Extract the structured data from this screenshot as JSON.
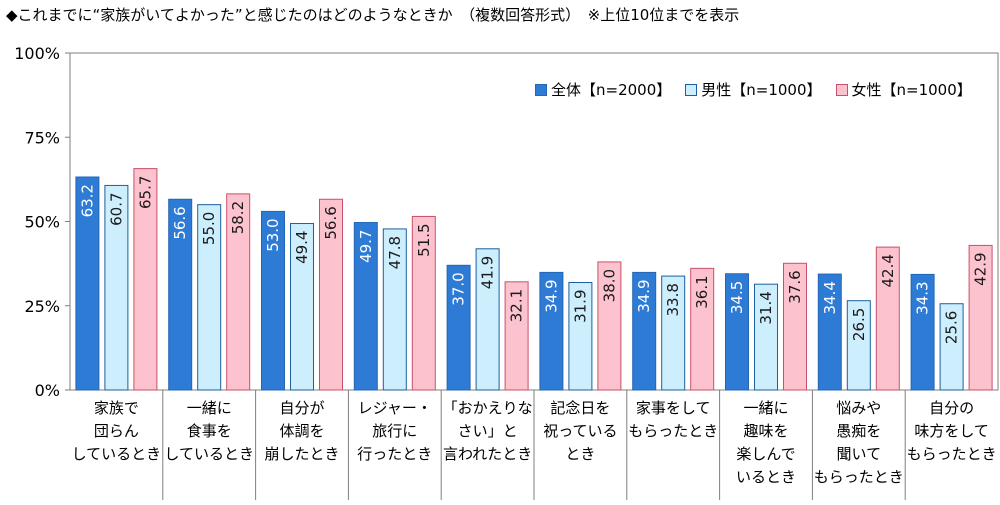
{
  "title": "◆これまでに“家族がいてよかった”と感じたのはどのようなときか　（複数回答形式）　※上位10位までを表示",
  "colors": {
    "series0_fill": "#2e7bd6",
    "series0_stroke": "#2467b5",
    "series1_fill": "#cdeefd",
    "series1_stroke": "#1d5f9e",
    "series2_fill": "#fcc3cf",
    "series2_stroke": "#c9506a"
  },
  "chart_data": {
    "type": "bar",
    "title": "◆これまでに“家族がいてよかった”と感じたのはどのようなときか　（複数回答形式）　※上位10位までを表示",
    "categories": [
      [
        "家族で",
        "団らん",
        "しているとき"
      ],
      [
        "一緒に",
        "食事を",
        "しているとき"
      ],
      [
        "自分が",
        "体調を",
        "崩したとき"
      ],
      [
        "レジャー・",
        "旅行に",
        "行ったとき"
      ],
      [
        "「おかえりな",
        "さい」と",
        "言われたとき"
      ],
      [
        "記念日を",
        "祝っている",
        "とき"
      ],
      [
        "家事をして",
        "もらったとき"
      ],
      [
        "一緒に",
        "趣味を",
        "楽しんで",
        "いるとき"
      ],
      [
        "悩みや",
        "愚痴を",
        "聞いて",
        "もらったとき"
      ],
      [
        "自分の",
        "味方をして",
        "もらったとき"
      ]
    ],
    "series": [
      {
        "name": "全体【n=2000】",
        "values": [
          63.2,
          56.6,
          53.0,
          49.7,
          37.0,
          34.9,
          34.9,
          34.5,
          34.4,
          34.3
        ]
      },
      {
        "name": "男性【n=1000】",
        "values": [
          60.7,
          55.0,
          49.4,
          47.8,
          41.9,
          31.9,
          33.8,
          31.4,
          26.5,
          25.6
        ]
      },
      {
        "name": "女性【n=1000】",
        "values": [
          65.7,
          58.2,
          56.6,
          51.5,
          32.1,
          38.0,
          36.1,
          37.6,
          42.4,
          42.9
        ]
      }
    ],
    "y_ticks": [
      "0%",
      "25%",
      "50%",
      "75%",
      "100%"
    ],
    "y_tick_values": [
      0,
      25,
      50,
      75,
      100
    ],
    "ylim": [
      0,
      100
    ],
    "grid": false,
    "legend_position": "top-right"
  }
}
